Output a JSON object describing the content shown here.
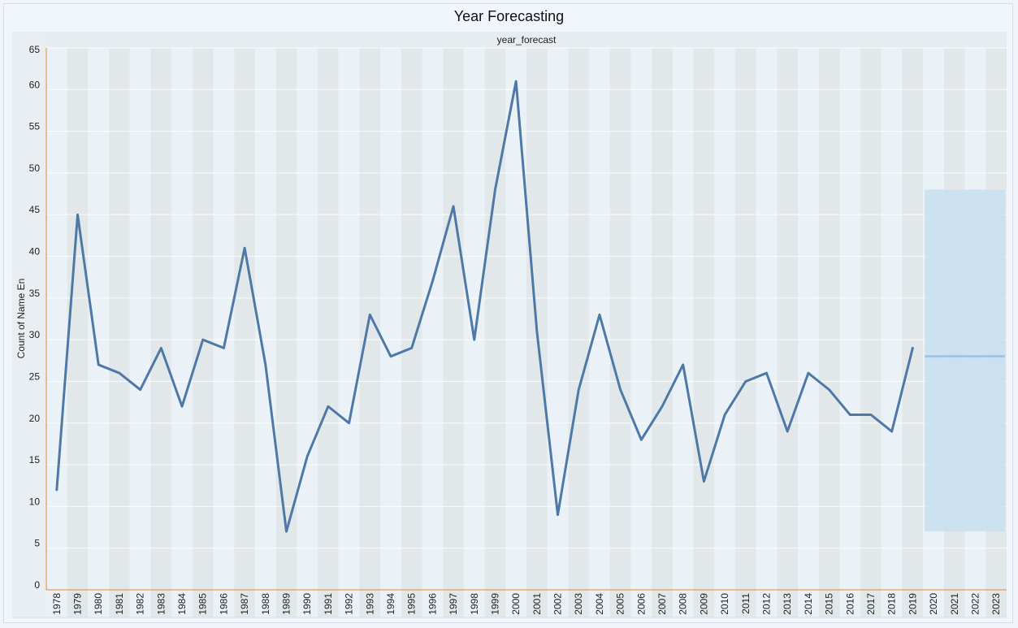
{
  "chart_data": {
    "type": "line",
    "title": "Year Forecasting",
    "facet_label": "year_forecast",
    "xlabel": "",
    "ylabel": "Count of Name En",
    "ylim": [
      0,
      65
    ],
    "yticks": [
      0,
      5,
      10,
      15,
      20,
      25,
      30,
      35,
      40,
      45,
      50,
      55,
      60,
      65
    ],
    "x": [
      "1978",
      "1979",
      "1980",
      "1981",
      "1982",
      "1983",
      "1984",
      "1985",
      "1986",
      "1987",
      "1988",
      "1989",
      "1990",
      "1991",
      "1992",
      "1993",
      "1994",
      "1995",
      "1996",
      "1997",
      "1998",
      "1999",
      "2000",
      "2001",
      "2002",
      "2003",
      "2004",
      "2005",
      "2006",
      "2007",
      "2008",
      "2009",
      "2010",
      "2011",
      "2012",
      "2013",
      "2014",
      "2015",
      "2016",
      "2017",
      "2018",
      "2019",
      "2020",
      "2021",
      "2022",
      "2023"
    ],
    "series": [
      {
        "values": [
          12,
          45,
          27,
          26,
          24,
          29,
          22,
          30,
          29,
          41,
          27,
          7,
          16,
          22,
          20,
          33,
          28,
          29,
          37,
          46,
          30,
          48,
          61,
          31,
          9,
          24,
          33,
          24,
          18,
          22,
          27,
          13,
          21,
          25,
          26,
          19,
          26,
          24,
          21,
          21,
          19,
          29,
          null,
          null,
          null,
          null
        ],
        "color": "#4e79a7"
      }
    ],
    "forecast": {
      "x_start": "2020",
      "x_end": "2023",
      "estimate": 28,
      "lower": 7,
      "upper": 48,
      "line_color": "#9fc5e8",
      "band_color": "#c7dff0"
    },
    "grid": true,
    "legend": "none",
    "colors": {
      "line": "#4e79a7",
      "band_dark": "#e2e8ea",
      "band_light": "#eaf2f8",
      "axis": "#e08a2e"
    }
  }
}
